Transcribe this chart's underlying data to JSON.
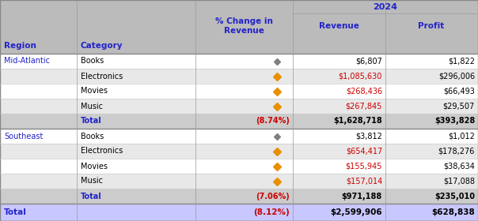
{
  "title_2024": "2024",
  "col_headers": [
    "% Change in\nRevenue",
    "Revenue",
    "Profit"
  ],
  "header_region": "Region",
  "header_category": "Category",
  "rows": [
    {
      "region": "Mid-Atlantic",
      "category": "Books",
      "pct_change": "diamond_gray",
      "revenue": "$6,807",
      "profit": "$1,822",
      "rev_red": false,
      "bold": false,
      "row_bg": "#ffffff"
    },
    {
      "region": "",
      "category": "Electronics",
      "pct_change": "diamond_orange",
      "revenue": "$1,085,630",
      "profit": "$296,006",
      "rev_red": true,
      "bold": false,
      "row_bg": "#e8e8e8"
    },
    {
      "region": "",
      "category": "Movies",
      "pct_change": "diamond_orange",
      "revenue": "$268,436",
      "profit": "$66,493",
      "rev_red": true,
      "bold": false,
      "row_bg": "#ffffff"
    },
    {
      "region": "",
      "category": "Music",
      "pct_change": "diamond_orange",
      "revenue": "$267,845",
      "profit": "$29,507",
      "rev_red": true,
      "bold": false,
      "row_bg": "#e8e8e8"
    },
    {
      "region": "",
      "category": "Total",
      "pct_change": "(8.74%)",
      "revenue": "$1,628,718",
      "profit": "$393,828",
      "rev_red": false,
      "bold": true,
      "row_bg": "#cccccc"
    },
    {
      "region": "Southeast",
      "category": "Books",
      "pct_change": "diamond_gray",
      "revenue": "$3,812",
      "profit": "$1,012",
      "rev_red": false,
      "bold": false,
      "row_bg": "#ffffff"
    },
    {
      "region": "",
      "category": "Electronics",
      "pct_change": "diamond_orange",
      "revenue": "$654,417",
      "profit": "$178,276",
      "rev_red": true,
      "bold": false,
      "row_bg": "#e8e8e8"
    },
    {
      "region": "",
      "category": "Movies",
      "pct_change": "diamond_orange",
      "revenue": "$155,945",
      "profit": "$38,634",
      "rev_red": true,
      "bold": false,
      "row_bg": "#ffffff"
    },
    {
      "region": "",
      "category": "Music",
      "pct_change": "diamond_orange",
      "revenue": "$157,014",
      "profit": "$17,088",
      "rev_red": true,
      "bold": false,
      "row_bg": "#e8e8e8"
    },
    {
      "region": "",
      "category": "Total",
      "pct_change": "(7.06%)",
      "revenue": "$971,188",
      "profit": "$235,010",
      "rev_red": false,
      "bold": true,
      "row_bg": "#cccccc"
    }
  ],
  "grand_total": {
    "label": "Total",
    "pct_change": "(8.12%)",
    "revenue": "$2,599,906",
    "profit": "$628,838",
    "row_bg": "#c8c8ff"
  },
  "header_bg": "#bbbbbb",
  "subheader_bg": "#bbbbbb",
  "blue": "#2222cc",
  "red": "#cc0000",
  "black": "#000000",
  "diamond_gray": "#808080",
  "diamond_orange": "#e89000",
  "fig_width": 6.04,
  "fig_height": 2.8,
  "dpi": 100
}
